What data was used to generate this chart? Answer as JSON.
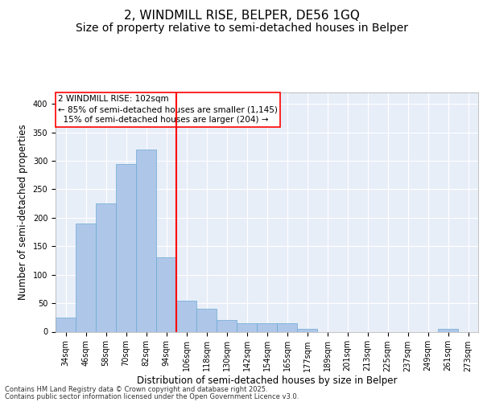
{
  "title_line1": "2, WINDMILL RISE, BELPER, DE56 1GQ",
  "title_line2": "Size of property relative to semi-detached houses in Belper",
  "xlabel": "Distribution of semi-detached houses by size in Belper",
  "ylabel": "Number of semi-detached properties",
  "categories": [
    "34sqm",
    "46sqm",
    "58sqm",
    "70sqm",
    "82sqm",
    "94sqm",
    "106sqm",
    "118sqm",
    "130sqm",
    "142sqm",
    "154sqm",
    "165sqm",
    "177sqm",
    "189sqm",
    "201sqm",
    "213sqm",
    "225sqm",
    "237sqm",
    "249sqm",
    "261sqm",
    "273sqm"
  ],
  "values": [
    25,
    190,
    225,
    295,
    320,
    130,
    55,
    40,
    20,
    15,
    15,
    15,
    5,
    0,
    0,
    0,
    0,
    0,
    0,
    5,
    0
  ],
  "bar_color": "#aec6e8",
  "bar_edge_color": "#6aaad4",
  "vline_x_index": 5.5,
  "vline_color": "red",
  "annotation_text": "2 WINDMILL RISE: 102sqm\n← 85% of semi-detached houses are smaller (1,145)\n  15% of semi-detached houses are larger (204) →",
  "footer_line1": "Contains HM Land Registry data © Crown copyright and database right 2025.",
  "footer_line2": "Contains public sector information licensed under the Open Government Licence v3.0.",
  "background_color": "#e8eef8",
  "ylim": [
    0,
    420
  ],
  "yticks": [
    0,
    50,
    100,
    150,
    200,
    250,
    300,
    350,
    400
  ],
  "grid_color": "#ffffff",
  "title_fontsize": 11,
  "subtitle_fontsize": 10,
  "axis_label_fontsize": 8.5,
  "tick_fontsize": 7,
  "annotation_fontsize": 7.5,
  "footer_fontsize": 6
}
